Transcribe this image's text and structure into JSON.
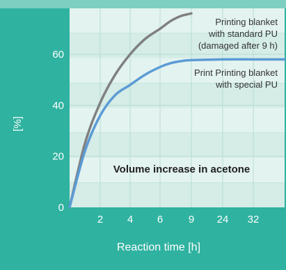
{
  "chart_data": {
    "type": "line",
    "title": "Volume increase in acetone",
    "xlabel": "Reaction time [h]",
    "ylabel": "[%]",
    "x_tick_labels": [
      "2",
      "4",
      "6",
      "9",
      "24",
      "32"
    ],
    "y_ticks": [
      0,
      20,
      40,
      60
    ],
    "ylim": [
      0,
      78
    ],
    "grid": true,
    "series": [
      {
        "name": "Printing blanket with standard PU (damaged after 9 h)",
        "label_lines": [
          "Printing blanket",
          "with standard PU",
          "(damaged after 9 h)"
        ],
        "color": "#808080",
        "x": [
          0,
          1,
          2,
          3,
          4,
          5,
          6,
          7,
          8,
          9
        ],
        "y": [
          0,
          25,
          41,
          52,
          60,
          66,
          70,
          73,
          75,
          76
        ]
      },
      {
        "name": "Print Printing blanket with special PU",
        "label_lines": [
          "Print Printing blanket",
          "with special PU"
        ],
        "color": "#5b9bd5",
        "x": [
          0,
          1,
          2,
          3,
          4,
          5,
          6,
          7,
          8,
          9,
          24,
          32,
          36
        ],
        "y": [
          0,
          22,
          36,
          44,
          48,
          52,
          55,
          56.5,
          57.3,
          57.7,
          58,
          58,
          58
        ]
      }
    ]
  },
  "colors": {
    "frame": "#2fb2a0",
    "plot_band_light": "#e3f3ef",
    "plot_band_dark": "#d5ece7",
    "grid": "#b7ddd5",
    "title_band": "#7ccfc1"
  }
}
